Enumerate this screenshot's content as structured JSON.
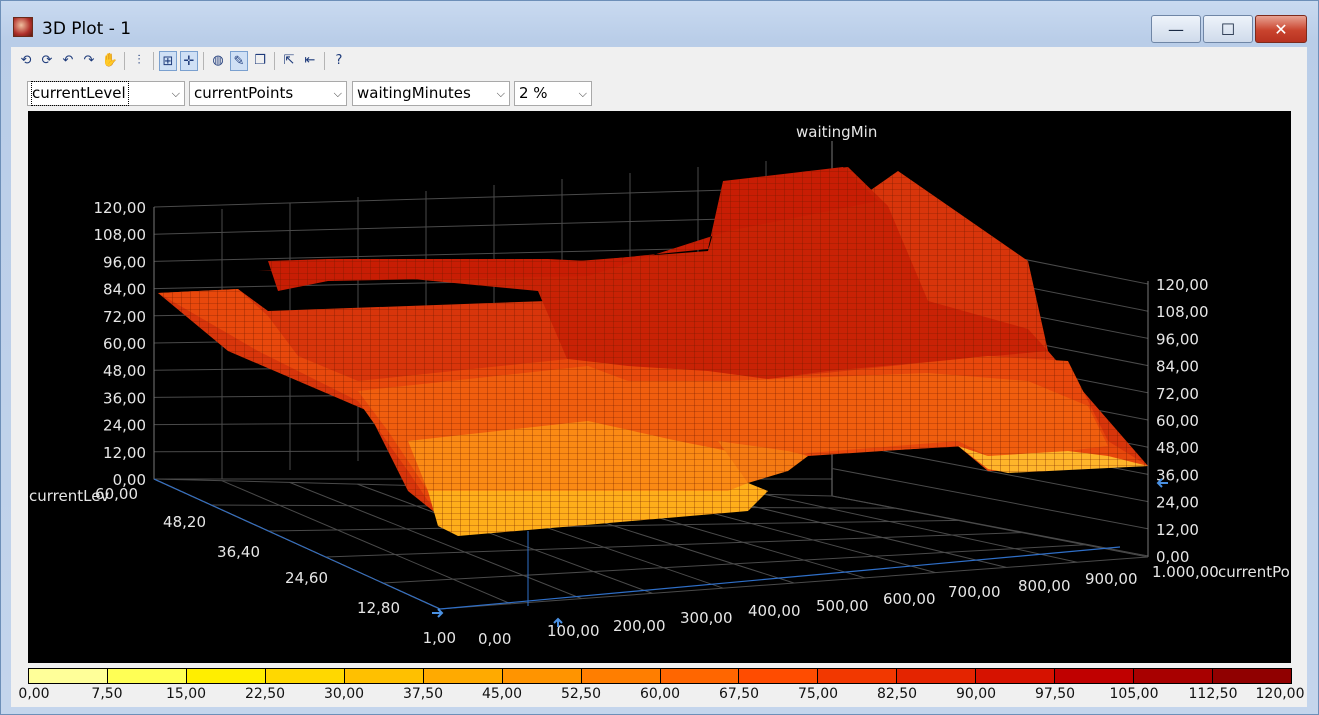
{
  "window": {
    "title": "3D Plot - 1",
    "min_symbol": "—",
    "max_symbol": "☐",
    "close_symbol": "✕"
  },
  "toolbar": {
    "buttons": [
      {
        "name": "rotate-left-icon",
        "glyph": "⟲"
      },
      {
        "name": "rotate-right-icon",
        "glyph": "⟳"
      },
      {
        "name": "tilt-up-icon",
        "glyph": "↶"
      },
      {
        "name": "tilt-down-icon",
        "glyph": "↷"
      },
      {
        "name": "pan-hand-icon",
        "glyph": "✋"
      },
      {
        "name": "separator"
      },
      {
        "name": "axis-scale-icon",
        "glyph": "⫶"
      },
      {
        "name": "separator"
      },
      {
        "name": "grid-toggle-icon",
        "glyph": "⊞",
        "active": true
      },
      {
        "name": "crosshair-icon",
        "glyph": "✛",
        "active": true
      },
      {
        "name": "separator"
      },
      {
        "name": "palette-icon",
        "glyph": "◍"
      },
      {
        "name": "color-brush-icon",
        "glyph": "✎",
        "active": true
      },
      {
        "name": "copy-icon",
        "glyph": "❐"
      },
      {
        "name": "separator"
      },
      {
        "name": "export-icon",
        "glyph": "⇱"
      },
      {
        "name": "back-icon",
        "glyph": "⇤"
      },
      {
        "name": "separator"
      },
      {
        "name": "help-icon",
        "glyph": "?"
      }
    ]
  },
  "selectors": {
    "x_axis": "currentLevel",
    "y_axis": "currentPoints",
    "z_axis": "waitingMinutes",
    "resolution": "2 %"
  },
  "plot": {
    "z_title": "waitingMin",
    "x_title": "currentLev",
    "y_title": "currentPoi",
    "z_ticks_left": [
      "0,00",
      "12,00",
      "24,00",
      "36,00",
      "48,00",
      "60,00",
      "72,00",
      "84,00",
      "96,00",
      "108,00",
      "120,00"
    ],
    "z_ticks_right": [
      "0,00",
      "12,00",
      "24,00",
      "36,00",
      "48,00",
      "60,00",
      "72,00",
      "84,00",
      "96,00",
      "108,00",
      "120,00"
    ],
    "x_ticks": [
      "1,00",
      "12,80",
      "24,60",
      "36,40",
      "48,20",
      "60,00"
    ],
    "y_ticks": [
      "0,00",
      "100,00",
      "200,00",
      "300,00",
      "400,00",
      "500,00",
      "600,00",
      "700,00",
      "800,00",
      "900,00",
      "1.000,00"
    ]
  },
  "chart_data": {
    "type": "surface",
    "x_label": "currentLevel",
    "y_label": "currentPoints",
    "z_label": "waitingMinutes",
    "x_range": [
      1,
      60
    ],
    "y_range": [
      0,
      1000
    ],
    "z_range": [
      0,
      120
    ],
    "description_values": {
      "plateaus_z": [
        30,
        60,
        90,
        120
      ]
    }
  },
  "legend": {
    "labels": [
      "0,00",
      "7,50",
      "15,00",
      "22,50",
      "30,00",
      "37,50",
      "45,00",
      "52,50",
      "60,00",
      "67,50",
      "75,00",
      "82,50",
      "90,00",
      "97,50",
      "105,00",
      "112,50",
      "120,00"
    ],
    "colors": [
      "#ffff99",
      "#ffff55",
      "#ffee00",
      "#ffd800",
      "#ffc000",
      "#ffaa00",
      "#ff9400",
      "#ff7e00",
      "#ff6600",
      "#ff4c00",
      "#f23800",
      "#e42400",
      "#d61200",
      "#c00000",
      "#a80000",
      "#900000"
    ]
  }
}
